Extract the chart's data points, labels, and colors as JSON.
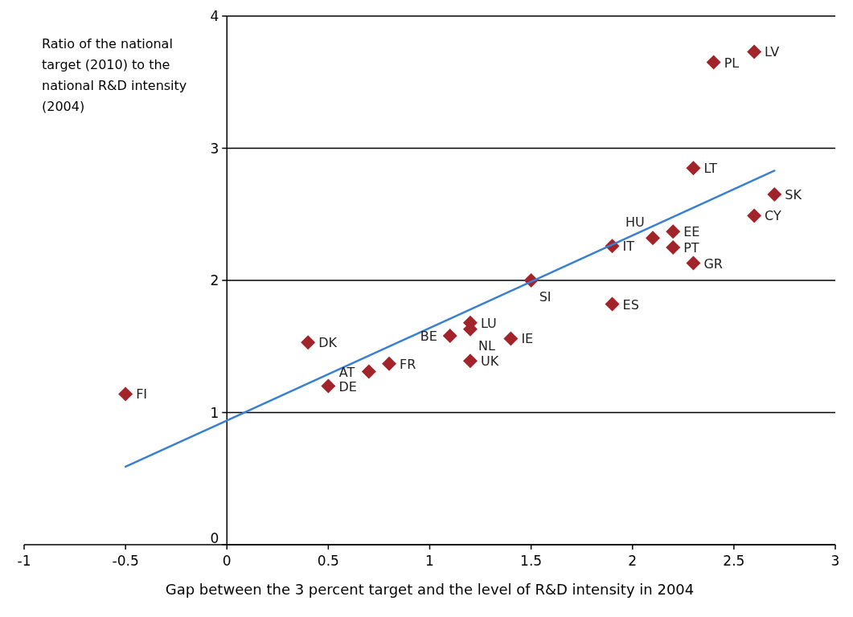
{
  "chart_data": {
    "type": "scatter",
    "xlabel": "Gap between the 3 percent target and the level of R&D intensity in 2004",
    "ylabel": "Ratio of the national target (2010) to the national R&D intensity (2004)",
    "xlim": [
      -1,
      3
    ],
    "xticks": [
      -1,
      -0.5,
      0,
      0.5,
      1,
      1.5,
      2,
      2.5,
      3
    ],
    "ylim": [
      0,
      4
    ],
    "yticks": [
      0,
      1,
      2,
      3,
      4
    ],
    "grid": "y",
    "series": [
      {
        "marker": "diamond",
        "color": "#a3232a",
        "x": [
          -0.5,
          0.4,
          0.5,
          0.7,
          0.8,
          1.1,
          1.2,
          1.2,
          1.2,
          1.4,
          1.5,
          1.9,
          1.9,
          2.1,
          2.2,
          2.2,
          2.3,
          2.3,
          2.6,
          2.7,
          2.4,
          2.6
        ],
        "values": [
          1.14,
          1.53,
          1.2,
          1.31,
          1.37,
          1.58,
          1.68,
          1.63,
          1.39,
          1.56,
          2.0,
          1.82,
          2.26,
          2.32,
          2.37,
          2.25,
          2.13,
          2.85,
          2.49,
          2.65,
          3.65,
          3.73
        ]
      },
      {
        "type": "line",
        "color": "#3a80d2",
        "x": [
          -0.5,
          2.7
        ],
        "values": [
          0.59,
          2.83
        ]
      }
    ],
    "annotations": [
      {
        "text": "FI",
        "x": -0.5,
        "y": 1.14
      },
      {
        "text": "DK",
        "x": 0.4,
        "y": 1.53
      },
      {
        "text": "DE",
        "x": 0.5,
        "y": 1.2
      },
      {
        "text": "AT",
        "x": 0.7,
        "y": 1.31
      },
      {
        "text": "FR",
        "x": 0.8,
        "y": 1.37
      },
      {
        "text": "BE",
        "x": 1.1,
        "y": 1.58
      },
      {
        "text": "LU",
        "x": 1.2,
        "y": 1.68
      },
      {
        "text": "NL",
        "x": 1.2,
        "y": 1.63
      },
      {
        "text": "UK",
        "x": 1.2,
        "y": 1.39
      },
      {
        "text": "IE",
        "x": 1.4,
        "y": 1.56
      },
      {
        "text": "SI",
        "x": 1.5,
        "y": 2.0
      },
      {
        "text": "ES",
        "x": 1.9,
        "y": 1.82
      },
      {
        "text": "IT",
        "x": 1.9,
        "y": 2.26
      },
      {
        "text": "HU",
        "x": 2.1,
        "y": 2.32
      },
      {
        "text": "EE",
        "x": 2.2,
        "y": 2.37
      },
      {
        "text": "PT",
        "x": 2.2,
        "y": 2.25
      },
      {
        "text": "GR",
        "x": 2.3,
        "y": 2.13
      },
      {
        "text": "LT",
        "x": 2.3,
        "y": 2.85
      },
      {
        "text": "CY",
        "x": 2.6,
        "y": 2.49
      },
      {
        "text": "SK",
        "x": 2.7,
        "y": 2.65
      },
      {
        "text": "PL",
        "x": 2.4,
        "y": 3.65
      },
      {
        "text": "LV",
        "x": 2.6,
        "y": 3.73
      }
    ]
  }
}
